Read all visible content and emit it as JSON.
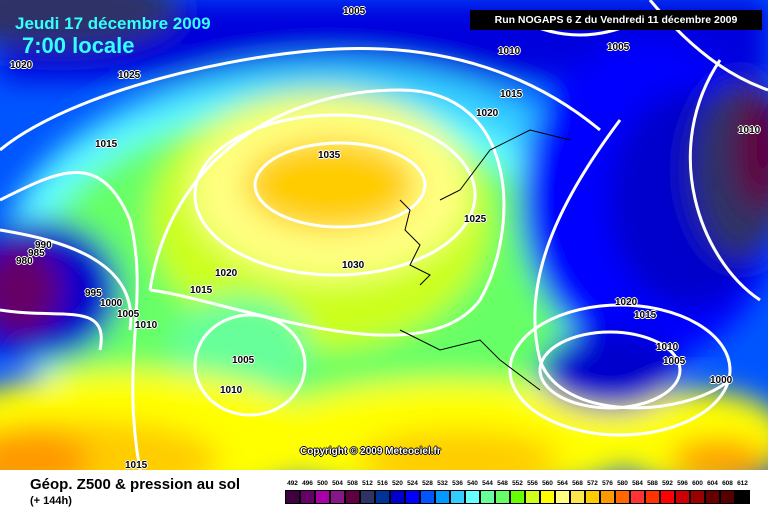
{
  "header": {
    "date": "Jeudi 17 décembre 2009",
    "time": "7:00 locale",
    "run": "Run NOGAPS 6 Z du Vendredi 11 décembre 2009"
  },
  "isobar_labels": [
    "1005",
    "1020",
    "1025",
    "1010",
    "1005",
    "1015",
    "1020",
    "1015",
    "1035",
    "1025",
    "1010",
    "990",
    "985",
    "980",
    "1020",
    "1030",
    "1015",
    "995",
    "1000",
    "1005",
    "1010",
    "1020",
    "1015",
    "1010",
    "1005",
    "1005",
    "1000",
    "1010",
    "1015"
  ],
  "copyright": "Copyright © 2009 Meteociel.fr",
  "footer": {
    "title": "Géop. Z500 & pression au sol",
    "subtitle": "(+ 144h)"
  },
  "legend": {
    "labels": [
      "492",
      "496",
      "500",
      "504",
      "508",
      "512",
      "516",
      "520",
      "524",
      "528",
      "532",
      "536",
      "540",
      "544",
      "548",
      "552",
      "556",
      "560",
      "564",
      "568",
      "572",
      "576",
      "580",
      "584",
      "588",
      "592",
      "596",
      "600",
      "604",
      "608",
      "612"
    ],
    "colors": [
      "#3f0040",
      "#660066",
      "#a600a6",
      "#871787",
      "#5f0040",
      "#2e3366",
      "#003399",
      "#0000cc",
      "#0000ff",
      "#0055ff",
      "#0099ff",
      "#33ccff",
      "#66ffff",
      "#66ff99",
      "#66ff66",
      "#66ff00",
      "#ccff1a",
      "#ffff00",
      "#ffff80",
      "#ffe64d",
      "#ffcc00",
      "#ff9900",
      "#ff6600",
      "#ff3333",
      "#ff3300",
      "#ff0000",
      "#cc0000",
      "#990000",
      "#660000",
      "#550000",
      "#000000"
    ]
  }
}
